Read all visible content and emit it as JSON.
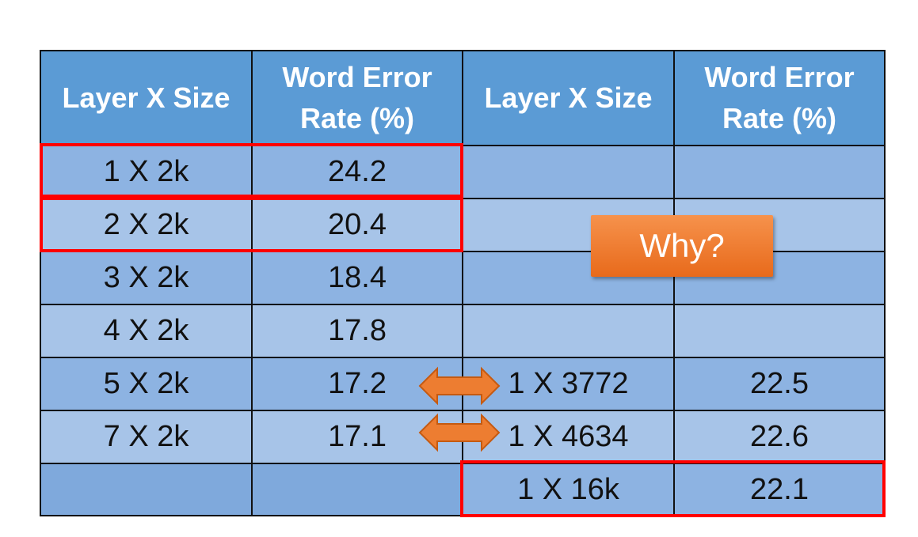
{
  "headers": [
    "Layer X Size",
    "Word Error Rate (%)",
    "Layer X Size",
    "Word Error Rate (%)"
  ],
  "rows": [
    [
      "1 X 2k",
      "24.2",
      "",
      ""
    ],
    [
      "2 X 2k",
      "20.4",
      "",
      ""
    ],
    [
      "3 X 2k",
      "18.4",
      "",
      ""
    ],
    [
      "4 X 2k",
      "17.8",
      "",
      ""
    ],
    [
      "5 X 2k",
      "17.2",
      "1 X 3772",
      "22.5"
    ],
    [
      "7 X 2k",
      "17.1",
      "1 X 4634",
      "22.6"
    ],
    [
      "",
      "",
      "1 X 16k",
      "22.1"
    ]
  ],
  "callout": "Why?",
  "colors": {
    "header": "#5b9bd5",
    "row_dark": "#8db3e2",
    "row_light": "#a7c4e8",
    "highlight": "#ff0000",
    "arrow": "#ed7d31",
    "callout": "#e86a1b"
  },
  "icons": [
    "double-arrow-icon"
  ]
}
